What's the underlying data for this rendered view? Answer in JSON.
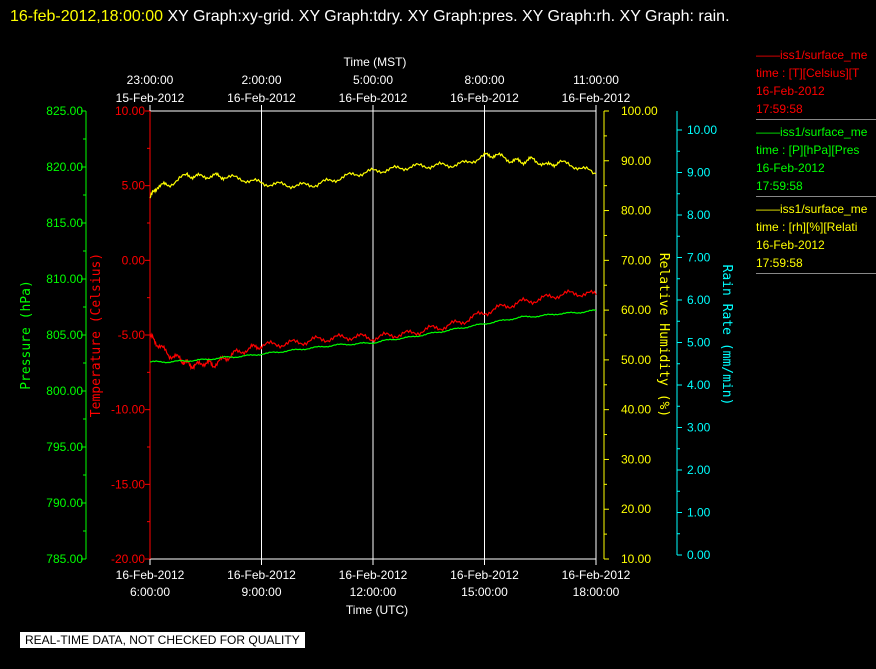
{
  "header": {
    "timestamp": "16-feb-2012,18:00:00",
    "graphs": "  XY Graph:xy-grid.  XY Graph:tdry.  XY Graph:pres.  XY Graph:rh.  XY Graph: rain."
  },
  "footer": {
    "notice": "REAL-TIME DATA, NOT CHECKED FOR QUALITY"
  },
  "legend": [
    {
      "title": "iss1/surface_me",
      "line2": "time : [T][Celsius][T",
      "date": "16-Feb-2012",
      "time": "17:59:58",
      "color": "#ff0000"
    },
    {
      "title": "iss1/surface_me",
      "line2": "time : [P][hPa][Pres",
      "date": "16-Feb-2012",
      "time": "17:59:58",
      "color": "#00ff00"
    },
    {
      "title": "iss1/surface_me",
      "line2": "time : [rh][%][Relati",
      "date": "16-Feb-2012",
      "time": "17:59:58",
      "color": "#ffff00"
    }
  ],
  "chart_data": {
    "type": "line",
    "top_axis": {
      "title": "Time (MST)",
      "ticks": [
        {
          "time": "23:00:00",
          "date": "15-Feb-2012"
        },
        {
          "time": "2:00:00",
          "date": "16-Feb-2012"
        },
        {
          "time": "5:00:00",
          "date": "16-Feb-2012"
        },
        {
          "time": "8:00:00",
          "date": "16-Feb-2012"
        },
        {
          "time": "11:00:00",
          "date": "16-Feb-2012"
        }
      ]
    },
    "bottom_axis": {
      "title": "Time (UTC)",
      "ticks": [
        {
          "date": "16-Feb-2012",
          "time": "6:00:00"
        },
        {
          "date": "16-Feb-2012",
          "time": "9:00:00"
        },
        {
          "date": "16-Feb-2012",
          "time": "12:00:00"
        },
        {
          "date": "16-Feb-2012",
          "time": "15:00:00"
        },
        {
          "date": "16-Feb-2012",
          "time": "18:00:00"
        }
      ],
      "range_hours": [
        6,
        18
      ],
      "grid_hours": [
        9,
        12,
        15,
        18
      ]
    },
    "y_axes": {
      "pressure": {
        "label": "Pressure (hPa)",
        "color": "#00ff00",
        "min": 785,
        "max": 825,
        "ticks": [
          "825.00",
          "820.00",
          "815.00",
          "810.00",
          "805.00",
          "800.00",
          "795.00",
          "790.00",
          "785.00"
        ]
      },
      "temperature": {
        "label": "Temperature (Celsius)",
        "color": "#ff0000",
        "min": -20,
        "max": 10,
        "ticks": [
          "10.00",
          "5.00",
          "0.00",
          "-5.00",
          "-10.00",
          "-15.00",
          "-20.00"
        ]
      },
      "humidity": {
        "label": "Relative Humidity (%)",
        "color": "#ffff00",
        "min": 10,
        "max": 100,
        "ticks": [
          "100.00",
          "90.00",
          "80.00",
          "70.00",
          "60.00",
          "50.00",
          "40.00",
          "30.00",
          "20.00",
          "10.00"
        ]
      },
      "rain": {
        "label": "Rain Rate (mm/min)",
        "color": "#00ffff",
        "min": 0,
        "max": 10.5,
        "ticks": [
          "10.00",
          "9.00",
          "8.00",
          "7.00",
          "6.00",
          "5.00",
          "4.00",
          "3.00",
          "2.00",
          "1.00",
          "0.00"
        ]
      }
    },
    "series": [
      {
        "axis": "temperature",
        "color": "#ff0000",
        "x": [
          6,
          6.2,
          6.5,
          6.8,
          7,
          7.2,
          7.5,
          7.7,
          8,
          8.3,
          8.7,
          9,
          9.5,
          10,
          10.5,
          11,
          11.5,
          12,
          12.5,
          13,
          13.5,
          14,
          14.5,
          15,
          15.5,
          16,
          16.5,
          17,
          17.5,
          18
        ],
        "y": [
          -5.1,
          -5.6,
          -6.3,
          -6.6,
          -6.9,
          -7.1,
          -6.8,
          -7.0,
          -6.6,
          -6.2,
          -5.9,
          -5.7,
          -5.6,
          -5.5,
          -5.3,
          -5.2,
          -5.1,
          -5.2,
          -5.0,
          -4.9,
          -4.6,
          -4.4,
          -4.0,
          -3.5,
          -3.1,
          -2.8,
          -2.6,
          -2.3,
          -2.2,
          -2.3
        ]
      },
      {
        "axis": "pressure",
        "color": "#00ff00",
        "x": [
          6,
          6.5,
          7,
          7.5,
          8,
          8.5,
          9,
          9.5,
          10,
          10.5,
          11,
          11.5,
          12,
          12.5,
          13,
          13.5,
          14,
          14.5,
          15,
          15.5,
          16,
          16.5,
          17,
          17.5,
          18
        ],
        "y": [
          802.6,
          802.6,
          802.7,
          802.8,
          803.0,
          803.1,
          803.3,
          803.5,
          803.7,
          803.9,
          804.1,
          804.2,
          804.3,
          804.6,
          804.8,
          805.1,
          805.4,
          805.7,
          806.0,
          806.3,
          806.6,
          806.7,
          806.9,
          807.0,
          807.2
        ]
      },
      {
        "axis": "humidity",
        "color": "#ffff00",
        "x": [
          6,
          6.2,
          6.5,
          7,
          7.3,
          7.7,
          8,
          8.5,
          9,
          9.5,
          10,
          10.5,
          11,
          11.5,
          12,
          12.5,
          13,
          13.5,
          14,
          14.5,
          15,
          15.3,
          15.7,
          16,
          16.3,
          16.7,
          17,
          17.5,
          18
        ],
        "y": [
          82.5,
          84.9,
          85.2,
          87.1,
          86.8,
          87.0,
          86.8,
          86.3,
          85.5,
          85.2,
          85.0,
          85.3,
          86.3,
          87.3,
          87.9,
          88.3,
          88.8,
          89.0,
          89.1,
          89.5,
          91.0,
          91.2,
          90.1,
          89.8,
          90.3,
          89.0,
          89.7,
          88.8,
          87.4
        ]
      }
    ]
  }
}
